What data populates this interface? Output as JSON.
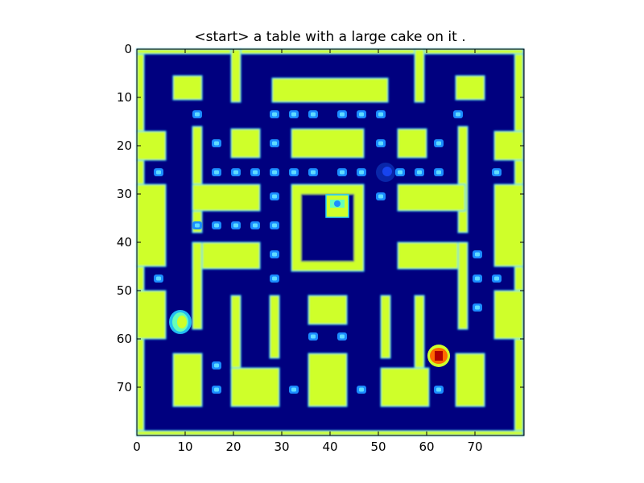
{
  "figure": {
    "title": "<start> a table with a large cake on it ."
  },
  "axes": {
    "x_ticks": [
      "0",
      "10",
      "20",
      "30",
      "40",
      "50",
      "60",
      "70"
    ],
    "y_ticks": [
      "0",
      "10",
      "20",
      "30",
      "40",
      "50",
      "60",
      "70"
    ],
    "extent": [
      0,
      80
    ]
  },
  "colors": {
    "background": "#00007f",
    "wall": "#cfff2a",
    "wall_edge": "#26d0ff",
    "pellet": "#1b8cff",
    "pellet_core": "#5fdcff",
    "ghost_cyan": "#66ffb8",
    "player": "#ff6a00",
    "player_core": "#b10000"
  },
  "game_state": {
    "player_position": [
      62.5,
      63.5
    ],
    "ghost_positions": [
      [
        9,
        56.5
      ],
      [
        41.5,
        32.5
      ],
      [
        51.5,
        25.5
      ]
    ]
  }
}
